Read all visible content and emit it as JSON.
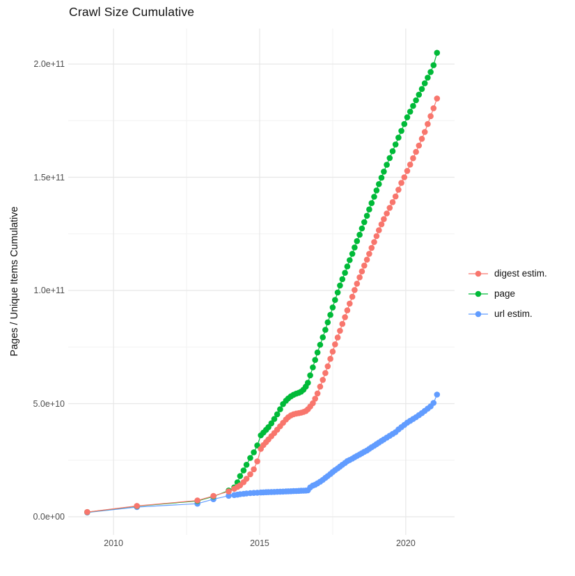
{
  "chart_data": {
    "type": "line",
    "title": "Crawl Size Cumulative",
    "xlabel": "",
    "ylabel": "Pages / Unique Items Cumulative",
    "grid": "on",
    "x_range": [
      2008.45,
      2021.67
    ],
    "y_range": [
      -8000000000.0,
      215700000000.0
    ],
    "x_axis": {
      "ticks": [
        2010,
        2015,
        2020
      ],
      "tick_labels": [
        "2010",
        "2015",
        "2020"
      ],
      "minor_ticks": [
        2012.5,
        2017.5
      ]
    },
    "y_axis": {
      "ticks": [
        0,
        50000000000.0,
        100000000000.0,
        150000000000.0,
        200000000000.0
      ],
      "tick_labels": [
        "0.0e+00",
        "5.0e+10",
        "1.0e+11",
        "1.5e+11",
        "2.0e+11"
      ],
      "minor_ticks": [
        25000000000.0,
        75000000000.0,
        125000000000.0,
        175000000000.0
      ]
    },
    "legend": {
      "position": "right"
    },
    "colors": {
      "digest": "#F8766D",
      "page": "#00BA38",
      "url": "#619CFF"
    },
    "grid_major_color": "#E7E7E7",
    "grid_minor_color": "#F2F2F2",
    "series": [
      {
        "name": "digest estim.",
        "color": "#F8766D",
        "points": [
          [
            2009.1,
            2100000000.0
          ],
          [
            2010.8,
            4800000000.0
          ],
          [
            2012.87,
            7200000000.0
          ],
          [
            2013.42,
            9200000000.0
          ],
          [
            2013.94,
            11200000000.0
          ],
          [
            2014.13,
            12400000000.0
          ],
          [
            2014.24,
            13200000000.0
          ],
          [
            2014.33,
            13900000000.0
          ],
          [
            2014.45,
            15300000000.0
          ],
          [
            2014.55,
            16800000000.0
          ],
          [
            2014.68,
            18800000000.0
          ],
          [
            2014.8,
            21000000000.0
          ],
          [
            2014.92,
            24500000000.0
          ],
          [
            2015.04,
            30000000000.0
          ],
          [
            2015.13,
            31700000000.0
          ],
          [
            2015.22,
            33000000000.0
          ],
          [
            2015.3,
            34200000000.0
          ],
          [
            2015.4,
            35600000000.0
          ],
          [
            2015.5,
            37000000000.0
          ],
          [
            2015.6,
            38500000000.0
          ],
          [
            2015.7,
            40000000000.0
          ],
          [
            2015.8,
            41500000000.0
          ],
          [
            2015.9,
            43000000000.0
          ],
          [
            2015.98,
            44000000000.0
          ],
          [
            2016.07,
            44800000000.0
          ],
          [
            2016.16,
            45300000000.0
          ],
          [
            2016.25,
            45600000000.0
          ],
          [
            2016.34,
            45800000000.0
          ],
          [
            2016.42,
            46000000000.0
          ],
          [
            2016.5,
            46300000000.0
          ],
          [
            2016.58,
            46700000000.0
          ],
          [
            2016.65,
            47500000000.0
          ],
          [
            2016.73,
            48700000000.0
          ],
          [
            2016.82,
            50200000000.0
          ],
          [
            2016.9,
            52200000000.0
          ],
          [
            2016.98,
            54500000000.0
          ],
          [
            2017.07,
            57500000000.0
          ],
          [
            2017.16,
            60500000000.0
          ],
          [
            2017.25,
            63500000000.0
          ],
          [
            2017.33,
            66500000000.0
          ],
          [
            2017.42,
            69800000000.0
          ],
          [
            2017.5,
            73000000000.0
          ],
          [
            2017.58,
            76200000000.0
          ],
          [
            2017.67,
            79200000000.0
          ],
          [
            2017.75,
            82200000000.0
          ],
          [
            2017.83,
            85200000000.0
          ],
          [
            2017.92,
            88200000000.0
          ],
          [
            2018.0,
            91200000000.0
          ],
          [
            2018.08,
            94200000000.0
          ],
          [
            2018.17,
            97200000000.0
          ],
          [
            2018.25,
            100200000000.0
          ],
          [
            2018.33,
            103000000000.0
          ],
          [
            2018.42,
            105800000000.0
          ],
          [
            2018.5,
            108400000000.0
          ],
          [
            2018.58,
            111000000000.0
          ],
          [
            2018.67,
            113600000000.0
          ],
          [
            2018.75,
            116200000000.0
          ],
          [
            2018.83,
            118800000000.0
          ],
          [
            2018.92,
            121400000000.0
          ],
          [
            2019.0,
            124000000000.0
          ],
          [
            2019.08,
            126600000000.0
          ],
          [
            2019.17,
            129200000000.0
          ],
          [
            2019.25,
            131500000000.0
          ],
          [
            2019.35,
            134000000000.0
          ],
          [
            2019.45,
            136500000000.0
          ],
          [
            2019.55,
            139000000000.0
          ],
          [
            2019.65,
            141500000000.0
          ],
          [
            2019.75,
            144500000000.0
          ],
          [
            2019.85,
            147500000000.0
          ],
          [
            2019.95,
            150000000000.0
          ],
          [
            2020.05,
            152800000000.0
          ],
          [
            2020.15,
            155600000000.0
          ],
          [
            2020.25,
            158400000000.0
          ],
          [
            2020.35,
            161200000000.0
          ],
          [
            2020.45,
            164000000000.0
          ],
          [
            2020.55,
            167000000000.0
          ],
          [
            2020.65,
            170000000000.0
          ],
          [
            2020.75,
            173500000000.0
          ],
          [
            2020.85,
            177000000000.0
          ],
          [
            2020.95,
            180500000000.0
          ],
          [
            2021.07,
            184800000000.0
          ]
        ]
      },
      {
        "name": "page",
        "color": "#00BA38",
        "points": [
          [
            2009.1,
            2050000000.0
          ],
          [
            2010.8,
            4700000000.0
          ],
          [
            2012.87,
            7000000000.0
          ],
          [
            2013.42,
            9000000000.0
          ],
          [
            2013.94,
            11600000000.0
          ],
          [
            2014.13,
            13000000000.0
          ],
          [
            2014.24,
            15200000000.0
          ],
          [
            2014.33,
            18000000000.0
          ],
          [
            2014.45,
            20500000000.0
          ],
          [
            2014.55,
            23000000000.0
          ],
          [
            2014.68,
            26000000000.0
          ],
          [
            2014.8,
            28500000000.0
          ],
          [
            2014.92,
            31500000000.0
          ],
          [
            2015.04,
            36000000000.0
          ],
          [
            2015.13,
            37200000000.0
          ],
          [
            2015.22,
            38400000000.0
          ],
          [
            2015.3,
            39600000000.0
          ],
          [
            2015.4,
            41300000000.0
          ],
          [
            2015.5,
            43200000000.0
          ],
          [
            2015.6,
            45300000000.0
          ],
          [
            2015.7,
            47500000000.0
          ],
          [
            2015.8,
            49800000000.0
          ],
          [
            2015.9,
            51300000000.0
          ],
          [
            2015.98,
            52300000000.0
          ],
          [
            2016.07,
            53200000000.0
          ],
          [
            2016.16,
            53900000000.0
          ],
          [
            2016.25,
            54400000000.0
          ],
          [
            2016.34,
            54800000000.0
          ],
          [
            2016.42,
            55300000000.0
          ],
          [
            2016.5,
            56200000000.0
          ],
          [
            2016.58,
            57500000000.0
          ],
          [
            2016.65,
            59200000000.0
          ],
          [
            2016.73,
            62500000000.0
          ],
          [
            2016.82,
            66000000000.0
          ],
          [
            2016.9,
            69300000000.0
          ],
          [
            2016.98,
            72600000000.0
          ],
          [
            2017.07,
            76000000000.0
          ],
          [
            2017.16,
            79300000000.0
          ],
          [
            2017.25,
            82600000000.0
          ],
          [
            2017.33,
            85900000000.0
          ],
          [
            2017.42,
            89200000000.0
          ],
          [
            2017.5,
            92500000000.0
          ],
          [
            2017.58,
            95800000000.0
          ],
          [
            2017.67,
            99100000000.0
          ],
          [
            2017.75,
            102200000000.0
          ],
          [
            2017.83,
            105000000000.0
          ],
          [
            2017.92,
            107800000000.0
          ],
          [
            2018.0,
            110600000000.0
          ],
          [
            2018.08,
            113400000000.0
          ],
          [
            2018.17,
            116200000000.0
          ],
          [
            2018.25,
            119000000000.0
          ],
          [
            2018.33,
            121800000000.0
          ],
          [
            2018.42,
            124600000000.0
          ],
          [
            2018.5,
            127400000000.0
          ],
          [
            2018.58,
            130200000000.0
          ],
          [
            2018.67,
            133000000000.0
          ],
          [
            2018.75,
            135800000000.0
          ],
          [
            2018.83,
            138600000000.0
          ],
          [
            2018.92,
            141400000000.0
          ],
          [
            2019.0,
            144200000000.0
          ],
          [
            2019.08,
            147000000000.0
          ],
          [
            2019.17,
            149800000000.0
          ],
          [
            2019.25,
            152500000000.0
          ],
          [
            2019.35,
            155500000000.0
          ],
          [
            2019.45,
            158500000000.0
          ],
          [
            2019.55,
            161500000000.0
          ],
          [
            2019.65,
            164500000000.0
          ],
          [
            2019.75,
            167500000000.0
          ],
          [
            2019.85,
            170500000000.0
          ],
          [
            2019.95,
            173500000000.0
          ],
          [
            2020.05,
            176500000000.0
          ],
          [
            2020.15,
            179000000000.0
          ],
          [
            2020.25,
            181500000000.0
          ],
          [
            2020.35,
            184000000000.0
          ],
          [
            2020.45,
            186500000000.0
          ],
          [
            2020.55,
            189000000000.0
          ],
          [
            2020.65,
            191500000000.0
          ],
          [
            2020.75,
            194000000000.0
          ],
          [
            2020.85,
            196500000000.0
          ],
          [
            2020.95,
            199500000000.0
          ],
          [
            2021.07,
            205000000000.0
          ]
        ]
      },
      {
        "name": "url estim.",
        "color": "#619CFF",
        "points": [
          [
            2009.1,
            1900000000.0
          ],
          [
            2010.8,
            4300000000.0
          ],
          [
            2012.87,
            5800000000.0
          ],
          [
            2013.42,
            7800000000.0
          ],
          [
            2013.94,
            9300000000.0
          ],
          [
            2014.13,
            9600000000.0
          ],
          [
            2014.24,
            9800000000.0
          ],
          [
            2014.33,
            10000000000.0
          ],
          [
            2014.45,
            10150000000.0
          ],
          [
            2014.55,
            10300000000.0
          ],
          [
            2014.68,
            10450000000.0
          ],
          [
            2014.8,
            10550000000.0
          ],
          [
            2014.92,
            10650000000.0
          ],
          [
            2015.04,
            10750000000.0
          ],
          [
            2015.13,
            10800000000.0
          ],
          [
            2015.22,
            10850000000.0
          ],
          [
            2015.3,
            10900000000.0
          ],
          [
            2015.4,
            10950000000.0
          ],
          [
            2015.5,
            11000000000.0
          ],
          [
            2015.6,
            11050000000.0
          ],
          [
            2015.7,
            11100000000.0
          ],
          [
            2015.8,
            11150000000.0
          ],
          [
            2015.9,
            11200000000.0
          ],
          [
            2015.98,
            11250000000.0
          ],
          [
            2016.07,
            11300000000.0
          ],
          [
            2016.16,
            11350000000.0
          ],
          [
            2016.25,
            11400000000.0
          ],
          [
            2016.34,
            11450000000.0
          ],
          [
            2016.42,
            11500000000.0
          ],
          [
            2016.5,
            11550000000.0
          ],
          [
            2016.58,
            11600000000.0
          ],
          [
            2016.65,
            11700000000.0
          ],
          [
            2016.73,
            13000000000.0
          ],
          [
            2016.82,
            13800000000.0
          ],
          [
            2016.9,
            14200000000.0
          ],
          [
            2016.98,
            14800000000.0
          ],
          [
            2017.07,
            15500000000.0
          ],
          [
            2017.16,
            16300000000.0
          ],
          [
            2017.25,
            17200000000.0
          ],
          [
            2017.33,
            18000000000.0
          ],
          [
            2017.42,
            18900000000.0
          ],
          [
            2017.5,
            19800000000.0
          ],
          [
            2017.58,
            20600000000.0
          ],
          [
            2017.67,
            21400000000.0
          ],
          [
            2017.75,
            22200000000.0
          ],
          [
            2017.83,
            23000000000.0
          ],
          [
            2017.92,
            23800000000.0
          ],
          [
            2018.0,
            24600000000.0
          ],
          [
            2018.08,
            25100000000.0
          ],
          [
            2018.17,
            25700000000.0
          ],
          [
            2018.25,
            26300000000.0
          ],
          [
            2018.33,
            26900000000.0
          ],
          [
            2018.42,
            27500000000.0
          ],
          [
            2018.5,
            28100000000.0
          ],
          [
            2018.58,
            28700000000.0
          ],
          [
            2018.67,
            29300000000.0
          ],
          [
            2018.75,
            30000000000.0
          ],
          [
            2018.83,
            30700000000.0
          ],
          [
            2018.92,
            31400000000.0
          ],
          [
            2019.0,
            32100000000.0
          ],
          [
            2019.08,
            32800000000.0
          ],
          [
            2019.17,
            33500000000.0
          ],
          [
            2019.25,
            34200000000.0
          ],
          [
            2019.35,
            35000000000.0
          ],
          [
            2019.45,
            35800000000.0
          ],
          [
            2019.55,
            36600000000.0
          ],
          [
            2019.65,
            37400000000.0
          ],
          [
            2019.75,
            38600000000.0
          ],
          [
            2019.85,
            39600000000.0
          ],
          [
            2019.95,
            40600000000.0
          ],
          [
            2020.05,
            41600000000.0
          ],
          [
            2020.15,
            42400000000.0
          ],
          [
            2020.25,
            43200000000.0
          ],
          [
            2020.35,
            44000000000.0
          ],
          [
            2020.45,
            44900000000.0
          ],
          [
            2020.55,
            45800000000.0
          ],
          [
            2020.65,
            46800000000.0
          ],
          [
            2020.75,
            47800000000.0
          ],
          [
            2020.85,
            48800000000.0
          ],
          [
            2020.95,
            50300000000.0
          ],
          [
            2021.07,
            54000000000.0
          ]
        ]
      }
    ]
  }
}
